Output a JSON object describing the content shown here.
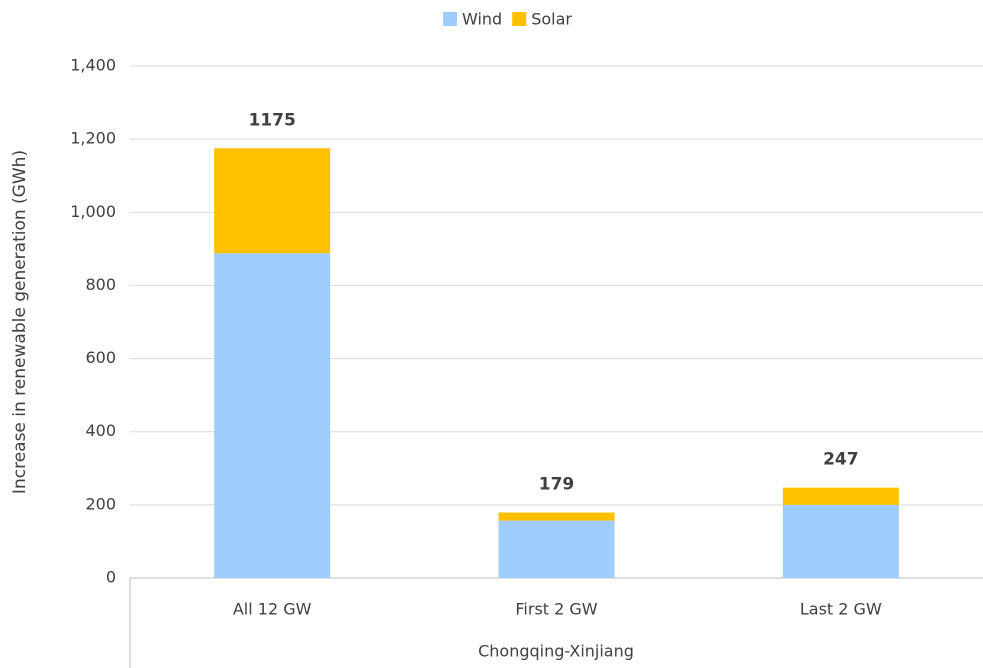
{
  "chart_data": {
    "type": "stacked_bar",
    "categories": [
      "All 12 GW",
      "First 2 GW",
      "Last 2 GW"
    ],
    "group_label": "Chongqing-Xinjiang",
    "y_label": "Increase in renewable generation (GWh)",
    "series": [
      {
        "name": "Wind",
        "color": "#9fcdfd",
        "values": [
          888,
          157,
          200
        ]
      },
      {
        "name": "Solar",
        "color": "#ffc000",
        "values": [
          287,
          22,
          47
        ]
      }
    ],
    "totals": [
      1175,
      179,
      247
    ],
    "ylim": [
      0,
      1400
    ],
    "yticks": [
      0,
      200,
      400,
      600,
      800,
      {
        "value": 1000,
        "label": "1,000"
      },
      {
        "value": 1200,
        "label": "1,200"
      },
      {
        "value": 1400,
        "label": "1,400"
      }
    ],
    "grid": true,
    "legend": "top"
  }
}
